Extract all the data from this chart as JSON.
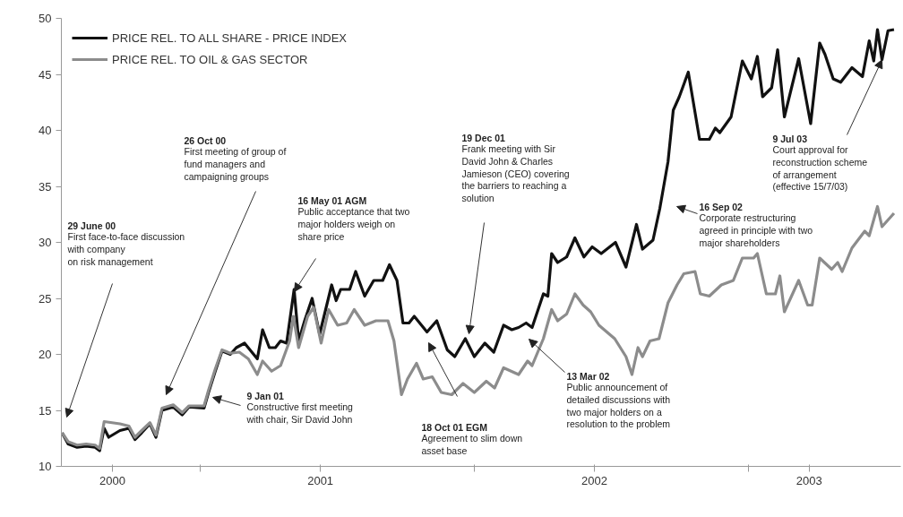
{
  "chart_data": {
    "type": "line",
    "xlim": [
      "2000-06-30",
      "2003-07-23"
    ],
    "ylim": [
      10,
      50
    ],
    "yticks": [
      10,
      15,
      20,
      25,
      30,
      35,
      40,
      45,
      50
    ],
    "xticks": [
      {
        "value": "2000-09-06",
        "label": "2000"
      },
      {
        "value": "2001-01-01",
        "label": null
      },
      {
        "value": "2001-06-10",
        "label": "2001"
      },
      {
        "value": "2002-01-01",
        "label": null
      },
      {
        "value": "2002-06-10",
        "label": "2002"
      },
      {
        "value": "2003-01-01",
        "label": null
      },
      {
        "value": "2003-03-23",
        "label": "2003"
      }
    ],
    "grid": false,
    "legend": "top left",
    "marker": "none",
    "line_style": "solid",
    "series": [
      {
        "name": "PRICE REL. TO ALL SHARE - PRICE INDEX",
        "color": "#111111",
        "x": [
          "2000-07-01",
          "2000-07-09",
          "2000-07-21",
          "2000-08-02",
          "2000-08-14",
          "2000-08-20",
          "2000-08-26",
          "2000-09-01",
          "2000-09-16",
          "2000-09-28",
          "2000-10-06",
          "2000-10-15",
          "2000-10-26",
          "2000-11-03",
          "2000-11-11",
          "2000-11-26",
          "2000-12-08",
          "2000-12-17",
          "2001-01-06",
          "2001-01-12",
          "2001-01-21",
          "2001-01-30",
          "2001-02-10",
          "2001-02-18",
          "2001-03-01",
          "2001-03-18",
          "2001-03-25",
          "2001-04-03",
          "2001-04-11",
          "2001-04-18",
          "2001-04-26",
          "2001-05-06",
          "2001-05-12",
          "2001-05-20",
          "2001-05-30",
          "2001-06-09",
          "2001-06-25",
          "2001-07-01",
          "2001-07-07",
          "2001-07-19",
          "2001-07-27",
          "2001-08-08",
          "2001-08-20",
          "2001-09-01",
          "2001-09-10",
          "2001-09-20",
          "2001-09-28",
          "2001-10-06",
          "2001-10-13",
          "2001-10-30",
          "2001-11-12",
          "2001-11-26",
          "2001-12-06",
          "2001-12-20",
          "2002-01-01",
          "2002-01-15",
          "2002-01-27",
          "2002-02-09",
          "2002-02-20",
          "2002-03-01",
          "2002-03-11",
          "2002-03-19",
          "2002-04-03",
          "2002-04-09",
          "2002-04-14",
          "2002-04-22",
          "2002-05-04",
          "2002-05-15",
          "2002-05-27",
          "2002-06-07",
          "2002-06-19",
          "2002-07-08",
          "2002-07-22",
          "2002-08-05",
          "2002-08-13",
          "2002-08-27",
          "2002-09-05",
          "2002-09-16",
          "2002-09-23",
          "2002-10-01",
          "2002-10-13",
          "2002-10-28",
          "2002-11-10",
          "2002-11-18",
          "2002-11-24",
          "2002-12-09",
          "2002-12-24",
          "2003-01-05",
          "2003-01-13",
          "2003-01-20",
          "2003-02-01",
          "2003-02-09",
          "2003-02-18",
          "2003-03-09",
          "2003-03-25",
          "2003-04-06",
          "2003-04-13",
          "2003-04-24",
          "2003-05-04",
          "2003-05-19",
          "2003-06-02",
          "2003-06-11",
          "2003-06-17",
          "2003-06-22",
          "2003-06-28",
          "2003-07-06",
          "2003-07-14"
        ],
        "values": [
          13.0,
          12.0,
          11.7,
          11.8,
          11.7,
          11.4,
          13.4,
          12.6,
          13.2,
          13.4,
          12.4,
          13.0,
          13.8,
          12.6,
          15.0,
          15.3,
          14.6,
          15.3,
          15.2,
          16.6,
          18.5,
          20.3,
          20.0,
          20.6,
          21.0,
          19.6,
          22.2,
          20.6,
          20.6,
          21.2,
          21.0,
          25.8,
          21.2,
          23.0,
          25.0,
          21.8,
          26.2,
          24.8,
          25.8,
          25.8,
          27.4,
          25.2,
          26.6,
          26.6,
          28.0,
          26.6,
          22.8,
          22.8,
          23.4,
          22.0,
          23.0,
          20.4,
          19.8,
          21.4,
          19.8,
          21.0,
          20.2,
          22.6,
          22.2,
          22.4,
          22.8,
          22.4,
          25.4,
          25.2,
          29.0,
          28.2,
          28.7,
          30.4,
          28.7,
          29.6,
          29.0,
          30.0,
          27.8,
          31.6,
          29.4,
          30.2,
          33.0,
          37.2,
          41.8,
          43.0,
          45.2,
          39.2,
          39.2,
          40.2,
          39.8,
          41.2,
          46.2,
          44.6,
          46.6,
          43.0,
          43.8,
          47.2,
          41.2,
          46.4,
          40.6,
          47.8,
          46.8,
          44.6,
          44.3,
          45.6,
          44.8,
          48.0,
          46.2,
          49.0,
          46.3,
          48.9,
          49.0
        ]
      },
      {
        "name": "PRICE REL. TO OIL & GAS SECTOR",
        "color": "#8c8c8c",
        "x": [
          "2000-07-01",
          "2000-07-09",
          "2000-07-21",
          "2000-08-02",
          "2000-08-14",
          "2000-08-20",
          "2000-08-26",
          "2000-09-16",
          "2000-09-28",
          "2000-10-06",
          "2000-10-15",
          "2000-10-26",
          "2000-11-03",
          "2000-11-11",
          "2000-11-26",
          "2000-12-08",
          "2000-12-17",
          "2001-01-06",
          "2001-01-12",
          "2001-01-21",
          "2001-01-30",
          "2001-02-10",
          "2001-02-22",
          "2001-03-06",
          "2001-03-18",
          "2001-03-25",
          "2001-04-06",
          "2001-04-18",
          "2001-04-30",
          "2001-05-05",
          "2001-05-12",
          "2001-05-24",
          "2001-06-01",
          "2001-06-11",
          "2001-06-21",
          "2001-07-03",
          "2001-07-15",
          "2001-07-25",
          "2001-08-08",
          "2001-08-23",
          "2001-09-08",
          "2001-09-16",
          "2001-09-26",
          "2001-10-04",
          "2001-10-16",
          "2001-10-25",
          "2001-11-06",
          "2001-11-18",
          "2001-12-02",
          "2001-12-17",
          "2002-01-01",
          "2002-01-17",
          "2002-01-28",
          "2002-02-09",
          "2002-03-01",
          "2002-03-13",
          "2002-03-19",
          "2002-04-03",
          "2002-04-14",
          "2002-04-22",
          "2002-05-04",
          "2002-05-15",
          "2002-05-26",
          "2002-06-05",
          "2002-06-16",
          "2002-07-07",
          "2002-07-22",
          "2002-07-30",
          "2002-08-07",
          "2002-08-13",
          "2002-08-23",
          "2002-09-04",
          "2002-09-16",
          "2002-09-28",
          "2002-10-07",
          "2002-10-22",
          "2002-10-29",
          "2002-11-10",
          "2002-11-26",
          "2002-12-12",
          "2002-12-24",
          "2003-01-08",
          "2003-01-13",
          "2003-01-25",
          "2003-02-06",
          "2003-02-12",
          "2003-02-18",
          "2003-03-09",
          "2003-03-21",
          "2003-03-27",
          "2003-04-06",
          "2003-04-22",
          "2003-04-30",
          "2003-05-06",
          "2003-05-19",
          "2003-06-05",
          "2003-06-11",
          "2003-06-22",
          "2003-06-28",
          "2003-07-14"
        ],
        "values": [
          13.0,
          12.2,
          11.9,
          12.0,
          11.9,
          11.6,
          14.0,
          13.8,
          13.6,
          12.6,
          13.2,
          13.9,
          12.8,
          15.2,
          15.5,
          14.8,
          15.4,
          15.4,
          16.8,
          18.7,
          20.4,
          20.1,
          20.2,
          19.6,
          18.2,
          19.4,
          18.5,
          19.0,
          21.2,
          23.4,
          20.6,
          23.4,
          24.2,
          21.0,
          24.0,
          22.6,
          22.8,
          24.0,
          22.6,
          23.0,
          23.0,
          21.2,
          16.4,
          17.8,
          19.2,
          17.8,
          18.0,
          16.6,
          16.4,
          17.4,
          16.6,
          17.6,
          17.0,
          18.8,
          18.2,
          19.4,
          19.0,
          21.4,
          24.0,
          23.0,
          23.6,
          25.4,
          24.4,
          23.8,
          22.6,
          21.4,
          19.8,
          18.2,
          20.6,
          19.8,
          21.2,
          21.4,
          24.6,
          26.2,
          27.2,
          27.4,
          25.4,
          25.2,
          26.2,
          26.6,
          28.6,
          28.6,
          29.0,
          25.4,
          25.4,
          27.0,
          23.8,
          26.6,
          24.4,
          24.4,
          28.6,
          27.6,
          28.2,
          27.4,
          29.5,
          31.0,
          30.6,
          33.2,
          31.4,
          32.6
        ]
      }
    ],
    "annotations": [
      "29 June 00\nFirst face-to-face discussion\nwith company\non risk management",
      "26 Oct 00\nFirst meeting of group of\nfund managers and\ncampaigning groups",
      "16 May 01 AGM\nPublic acceptance that two\nmajor holders weigh on\nshare price",
      "9 Jan 01\nConstructive first meeting\nwith chair, Sir David John",
      "18 Oct 01 EGM\nAgreement to slim down\nasset base",
      "19 Dec 01\nFrank meeting with Sir\nDavid John & Charles\nJamieson (CEO) covering\nthe barriers to reaching a\nsolution",
      "13 Mar 02\nPublic announcement of\ndetailed discussions with\ntwo major holders on a\nresolution to the problem",
      "16 Sep 02\nCorporate restructuring\nagreed in principle with two\nmajor shareholders",
      {
        "text": "9 Jul 03\nCourt approval for\nreconstruction scheme\nof arrangement\n(effective 15/7/03)",
        "x": "2003-06-28",
        "y": 46.3
      }
    ]
  }
}
